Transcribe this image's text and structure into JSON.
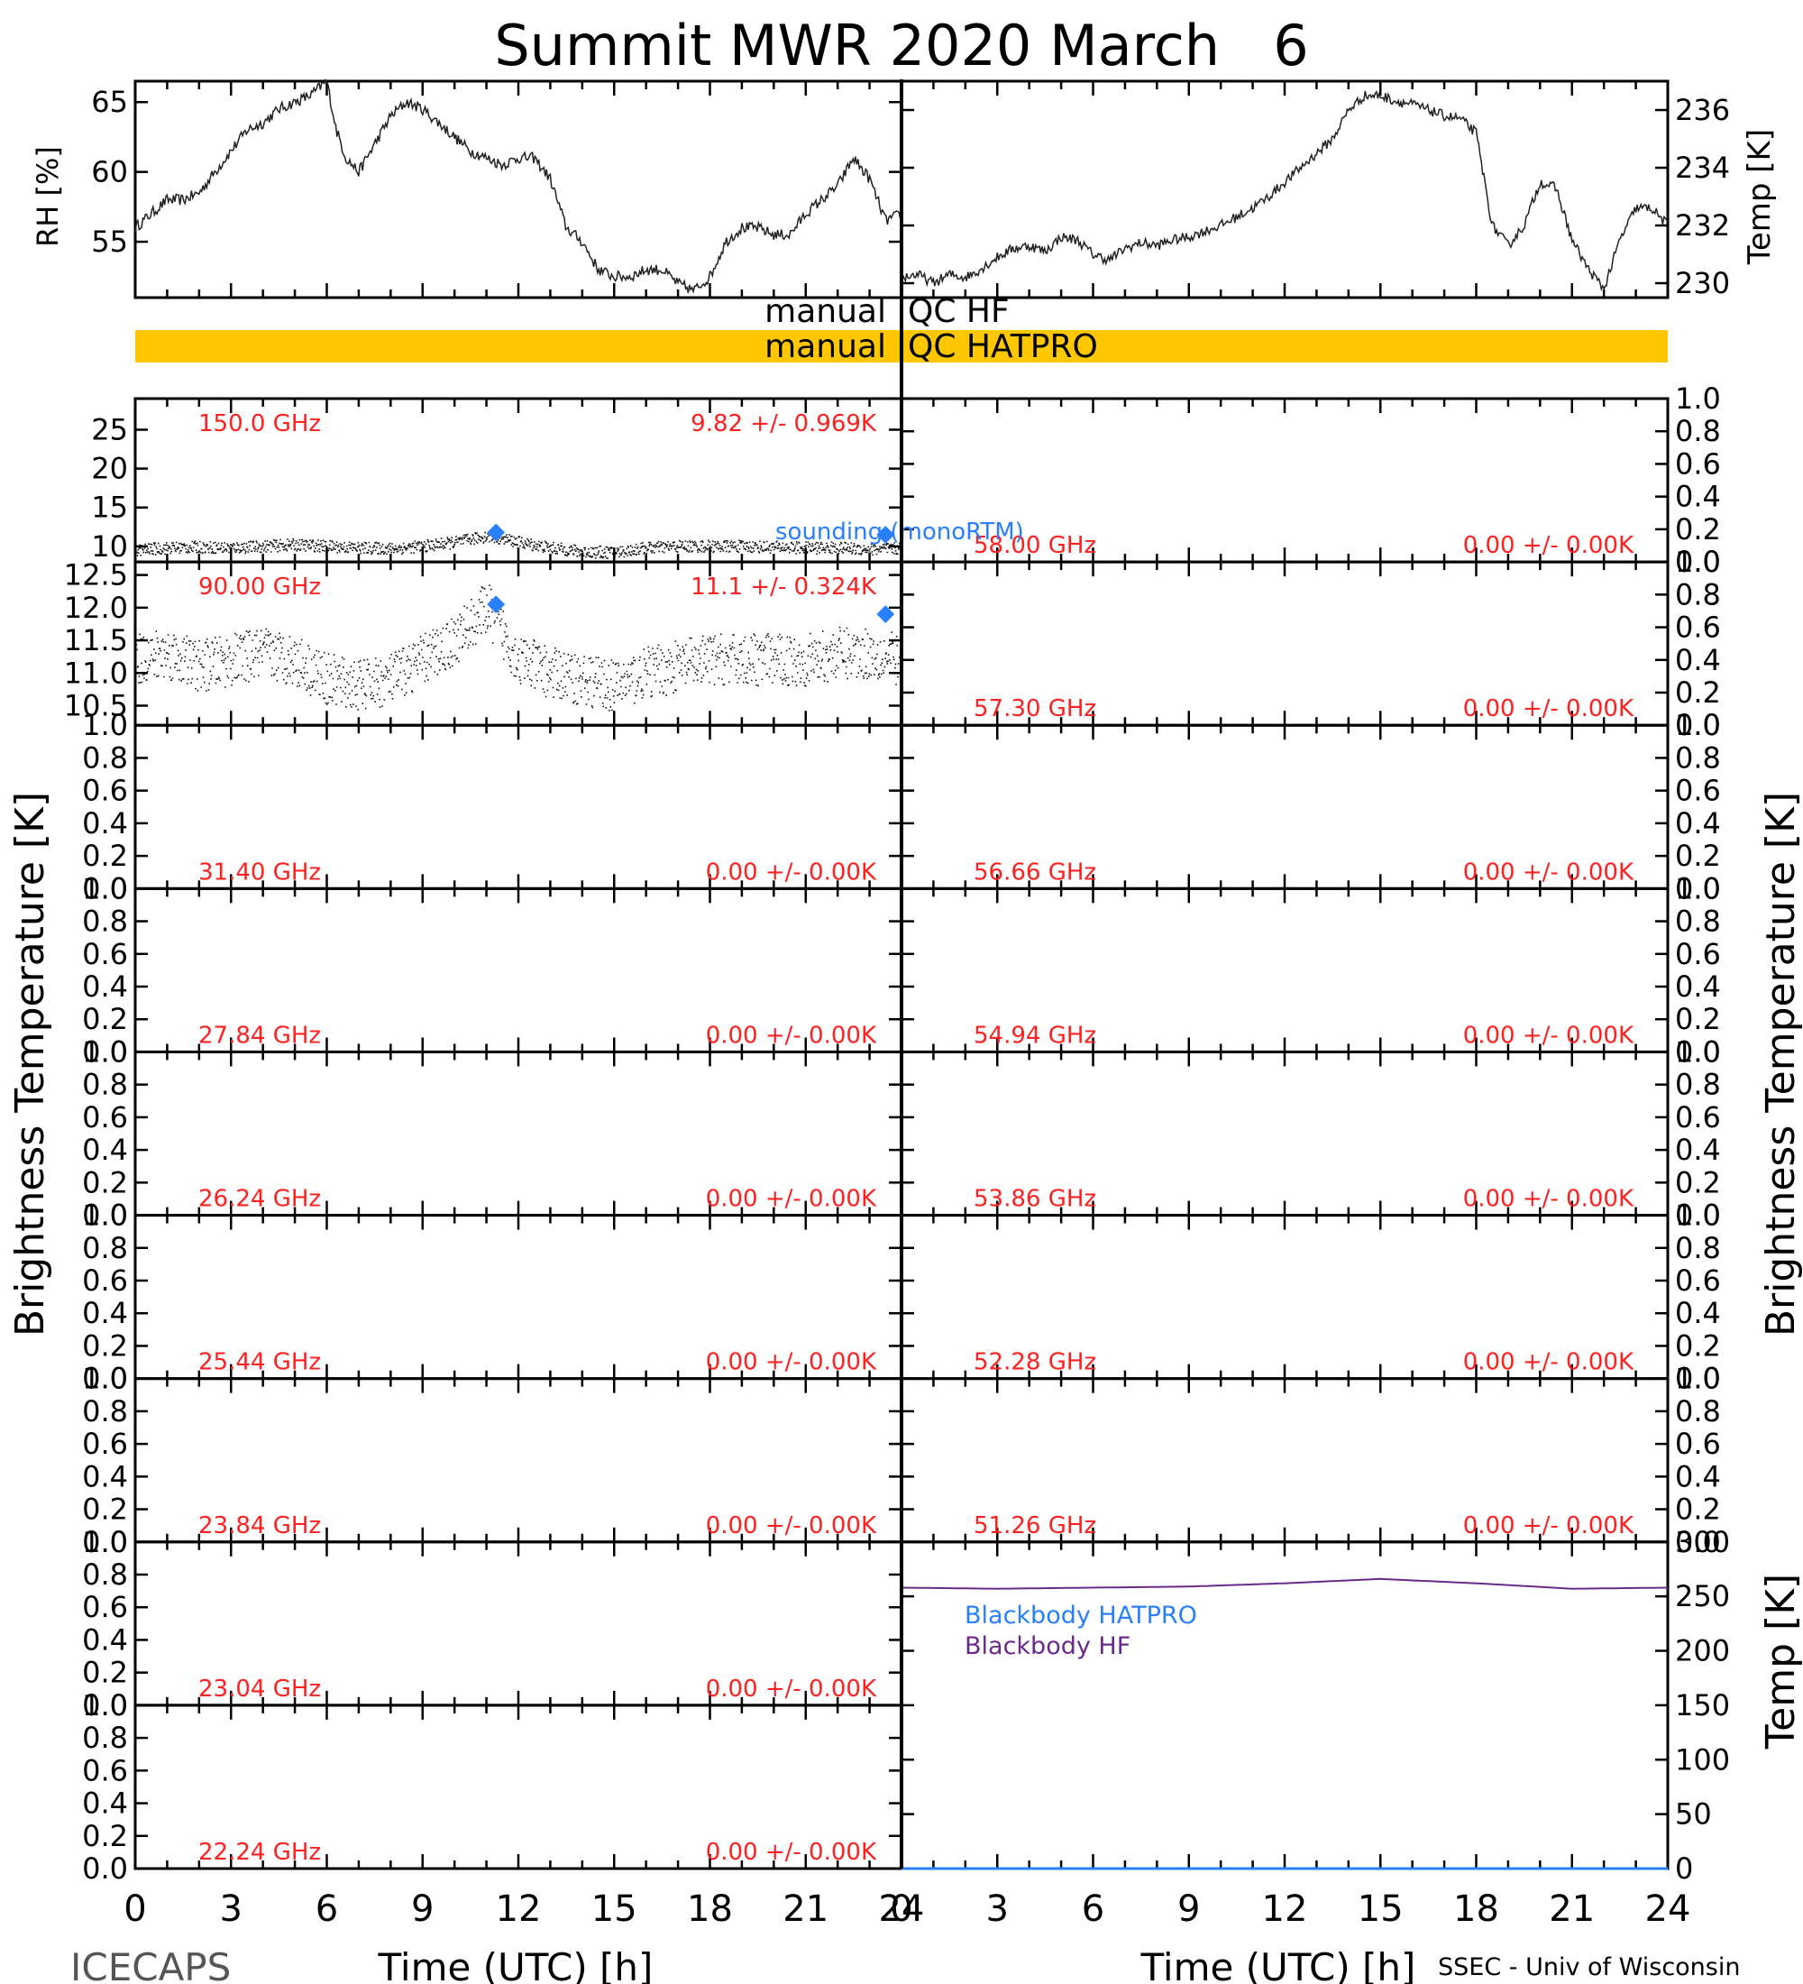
{
  "title": "Summit MWR 2020 March   6",
  "left_footer": "ICECAPS",
  "right_footer": "SSEC - Univ of Wisconsin",
  "colors": {
    "qc_bar": "#ffc700",
    "label_red": "#ff2020",
    "blue": "#2a7fff",
    "purple": "#6a2a8a"
  },
  "qc": {
    "hf_left": "manual",
    "hf_right": "QC HF",
    "hatpro_left": "manual",
    "hatpro_right": "QC HATPRO"
  },
  "legends": {
    "sounding": "sounding (monoRTM)",
    "bb_hatpro": "Blackbody HATPRO",
    "bb_hf": "Blackbody HF"
  },
  "axes": {
    "rh_label": "RH [%]",
    "temp_label": "Temp [K]",
    "tb_label": "Brightness Temperature [K]",
    "bb_temp_label": "Temp [K]",
    "x_label": "Time (UTC) [h]",
    "x_ticks": [
      "0",
      "3",
      "6",
      "9",
      "12",
      "15",
      "18",
      "21",
      "24"
    ]
  },
  "chart_data": [
    {
      "type": "line",
      "panel": "rh",
      "ylabel": "RH [%]",
      "xlim": [
        0,
        24
      ],
      "ylim": [
        51,
        66.5
      ],
      "yticks": [
        55,
        60,
        65
      ],
      "x": [
        0,
        0.5,
        1,
        1.5,
        2,
        2.5,
        3,
        3.5,
        4,
        4.5,
        5,
        5.5,
        6,
        6.3,
        6.6,
        7,
        7.5,
        8,
        8.5,
        9,
        9.5,
        10,
        10.5,
        11,
        11.5,
        12,
        12.5,
        13,
        13.5,
        14,
        14.5,
        15,
        15.5,
        16,
        16.5,
        17,
        17.5,
        18,
        18.5,
        19,
        19.5,
        20,
        20.5,
        21,
        21.5,
        22,
        22.5,
        23,
        23.5,
        24
      ],
      "y": [
        56,
        57,
        58,
        58,
        58.5,
        60,
        61.5,
        63,
        63.5,
        64.5,
        65,
        65.5,
        66.5,
        63,
        61,
        60,
        62,
        64,
        65,
        64.5,
        63.5,
        62.5,
        61.5,
        61,
        60.5,
        61,
        61,
        59.5,
        56,
        55,
        53,
        52.5,
        52.5,
        53,
        53,
        52,
        51.5,
        52.5,
        55,
        56,
        56,
        55.5,
        55.5,
        57,
        58,
        59,
        61,
        59.5,
        56.5,
        57
      ]
    },
    {
      "type": "line",
      "panel": "temp",
      "ylabel": "Temp [K]",
      "xlim": [
        0,
        24
      ],
      "ylim": [
        229.5,
        237
      ],
      "yticks": [
        230,
        232,
        234,
        236
      ],
      "x": [
        0,
        0.5,
        1,
        1.5,
        2,
        2.5,
        3,
        3.5,
        4,
        4.5,
        5,
        5.5,
        6,
        6.5,
        7,
        7.5,
        8,
        8.5,
        9,
        9.5,
        10,
        10.5,
        11,
        11.5,
        12,
        12.5,
        13,
        13.5,
        14,
        14.5,
        15,
        15.5,
        16,
        16.5,
        17,
        17.5,
        18,
        18.5,
        19,
        19.5,
        20,
        20.5,
        21,
        21.5,
        22,
        22.5,
        23,
        23.5,
        24
      ],
      "y": [
        230.2,
        230.3,
        230,
        230.3,
        230.2,
        230.5,
        230.9,
        231.2,
        231.3,
        231.1,
        231.6,
        231.5,
        231,
        230.8,
        231.2,
        231.4,
        231.3,
        231.5,
        231.6,
        231.8,
        232,
        232.3,
        232.6,
        233,
        233.5,
        234,
        234.5,
        235,
        236,
        236.5,
        236.5,
        236.3,
        236.2,
        236,
        235.8,
        235.7,
        235.2,
        232,
        231.3,
        232,
        233.5,
        233.3,
        231.5,
        230.5,
        229.8,
        231.5,
        232.6,
        232.6,
        232
      ]
    },
    {
      "type": "scatter",
      "panel": "tb_150",
      "label": "150.0 GHz",
      "stat": "9.82 +/- 0.969K",
      "xlim": [
        0,
        24
      ],
      "ylim": [
        8,
        29
      ],
      "yticks": [
        10,
        15,
        20,
        25
      ],
      "noise": 0.97,
      "x": [
        0,
        1,
        2,
        3,
        4,
        5,
        6,
        7,
        8,
        9,
        10,
        11,
        11.5,
        12,
        13,
        14,
        15,
        16,
        17,
        18,
        19,
        20,
        21,
        22,
        23,
        24
      ],
      "y": [
        9.5,
        9.8,
        9.9,
        9.8,
        10,
        10.2,
        10,
        9.8,
        9.7,
        10,
        10.5,
        11.3,
        11,
        10.5,
        9.8,
        9.3,
        9.2,
        9.8,
        10,
        10,
        10,
        9.9,
        9.8,
        9.8,
        9.6,
        9.7
      ],
      "sounding": [
        {
          "x": 11.3,
          "y": 11.8
        },
        {
          "x": 23.5,
          "y": 11.5
        }
      ]
    },
    {
      "type": "scatter",
      "panel": "tb_90",
      "label": "90.00 GHz",
      "stat": "11.1 +/- 0.324K",
      "xlim": [
        0,
        24
      ],
      "ylim": [
        10.2,
        12.7
      ],
      "yticks": [
        10.5,
        11.0,
        11.5,
        12.0,
        12.5
      ],
      "noise": 0.5,
      "x": [
        0,
        1,
        2,
        3,
        4,
        5,
        6,
        7,
        8,
        9,
        10,
        11,
        11.5,
        12,
        13,
        14,
        15,
        16,
        17,
        18,
        19,
        20,
        21,
        22,
        23,
        24
      ],
      "y": [
        11.2,
        11.3,
        11.1,
        11.2,
        11.3,
        11.2,
        10.9,
        10.8,
        10.9,
        11.2,
        11.5,
        12,
        11.6,
        11.2,
        11,
        10.9,
        10.8,
        11,
        11.1,
        11.2,
        11.2,
        11.2,
        11.2,
        11.3,
        11.3,
        11.2
      ],
      "sounding": [
        {
          "x": 11.3,
          "y": 12.05
        },
        {
          "x": 23.5,
          "y": 11.9
        }
      ]
    },
    {
      "type": "line",
      "panel": "blackbody",
      "ylabel": "Temp [K]",
      "xlim": [
        0,
        24
      ],
      "ylim": [
        0,
        300
      ],
      "yticks": [
        0,
        50,
        100,
        150,
        200,
        250,
        300
      ],
      "series": [
        {
          "name": "Blackbody HATPRO",
          "x": [
            0,
            24
          ],
          "y": [
            0,
            0
          ]
        },
        {
          "name": "Blackbody HF",
          "x": [
            0,
            3,
            6,
            9,
            12,
            15,
            18,
            21,
            24
          ],
          "y": [
            258,
            257,
            258,
            259,
            262,
            266,
            262,
            257,
            258
          ]
        }
      ]
    }
  ],
  "empty_panels": {
    "left": [
      {
        "label": "31.40 GHz",
        "stat": "0.00 +/- 0.00K"
      },
      {
        "label": "27.84 GHz",
        "stat": "0.00 +/- 0.00K"
      },
      {
        "label": "26.24 GHz",
        "stat": "0.00 +/- 0.00K"
      },
      {
        "label": "25.44 GHz",
        "stat": "0.00 +/- 0.00K"
      },
      {
        "label": "23.84 GHz",
        "stat": "0.00 +/- 0.00K"
      },
      {
        "label": "23.04 GHz",
        "stat": "0.00 +/- 0.00K"
      },
      {
        "label": "22.24 GHz",
        "stat": "0.00 +/- 0.00K"
      }
    ],
    "right": [
      {
        "label": "58.00 GHz",
        "stat": "0.00 +/- 0.00K"
      },
      {
        "label": "57.30 GHz",
        "stat": "0.00 +/- 0.00K"
      },
      {
        "label": "56.66 GHz",
        "stat": "0.00 +/- 0.00K"
      },
      {
        "label": "54.94 GHz",
        "stat": "0.00 +/- 0.00K"
      },
      {
        "label": "53.86 GHz",
        "stat": "0.00 +/- 0.00K"
      },
      {
        "label": "52.28 GHz",
        "stat": "0.00 +/- 0.00K"
      },
      {
        "label": "51.26 GHz",
        "stat": "0.00 +/- 0.00K"
      }
    ],
    "yticks": [
      "0.0",
      "0.2",
      "0.4",
      "0.6",
      "0.8",
      "1.0"
    ]
  }
}
